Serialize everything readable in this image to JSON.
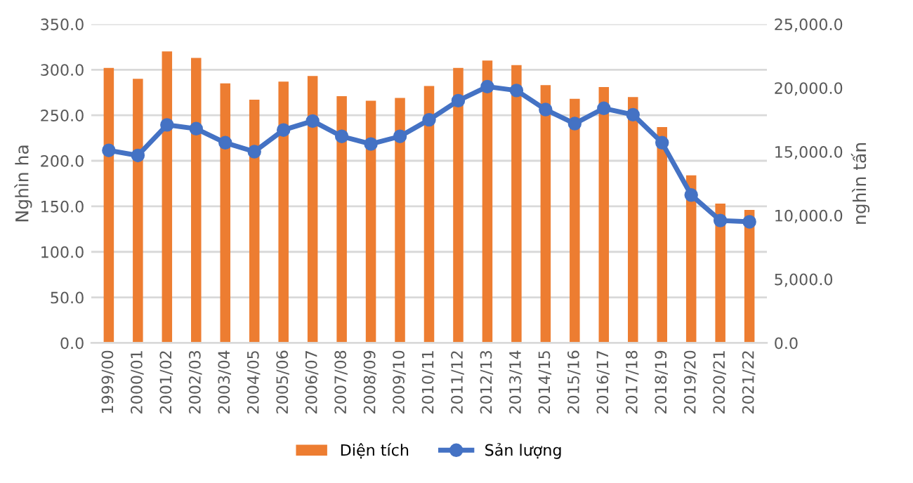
{
  "chart_data": {
    "type": "bar",
    "ylabel": "Nghìn ha",
    "y2label": "nghìn tấn",
    "categories": [
      "1999/00",
      "2000/01",
      "2001/02",
      "2002/03",
      "2003/04",
      "2004/05",
      "2005/06",
      "2006/07",
      "2007/08",
      "2008/09",
      "2009/10",
      "2010/11",
      "2011/12",
      "2012/13",
      "2013/14",
      "2014/15",
      "2015/16",
      "2016/17",
      "2017/18",
      "2018/19",
      "2019/20",
      "2020/21",
      "2021/22"
    ],
    "series": [
      {
        "name": "Diện tích",
        "color": "#ed7d31",
        "values": [
          302,
          290,
          320,
          313,
          285,
          267,
          287,
          293,
          271,
          266,
          269,
          282,
          302,
          310,
          305,
          283,
          268,
          281,
          270,
          237,
          184,
          153,
          146
        ]
      },
      {
        "name": "Sản lượng",
        "type": "line",
        "axis": "y2",
        "color": "#4472c4",
        "marker": "circle",
        "values": [
          15100,
          14700,
          17100,
          16800,
          15700,
          15000,
          16700,
          17400,
          16200,
          15600,
          16200,
          17500,
          19000,
          20100,
          19800,
          18300,
          17200,
          18400,
          17900,
          15700,
          11600,
          9600,
          9500
        ]
      }
    ],
    "ylim": [
      0,
      350
    ],
    "yticks": [
      {
        "value": 0,
        "label": "0.0"
      },
      {
        "value": 50,
        "label": "50.0"
      },
      {
        "value": 100,
        "label": "100.0"
      },
      {
        "value": 150,
        "label": "150.0"
      },
      {
        "value": 200,
        "label": "200.0"
      },
      {
        "value": 250,
        "label": "250.0"
      },
      {
        "value": 300,
        "label": "300.0"
      },
      {
        "value": 350,
        "label": "350.0"
      }
    ],
    "y2lim": [
      0,
      25000
    ],
    "y2ticks": [
      {
        "value": 0,
        "label": "0.0"
      },
      {
        "value": 5000,
        "label": "5,000.0"
      },
      {
        "value": 10000,
        "label": "10,000.0"
      },
      {
        "value": 15000,
        "label": "15,000.0"
      },
      {
        "value": 20000,
        "label": "20,000.0"
      },
      {
        "value": 25000,
        "label": "25,000.0"
      }
    ],
    "grid": "y",
    "legend": "bottom"
  }
}
